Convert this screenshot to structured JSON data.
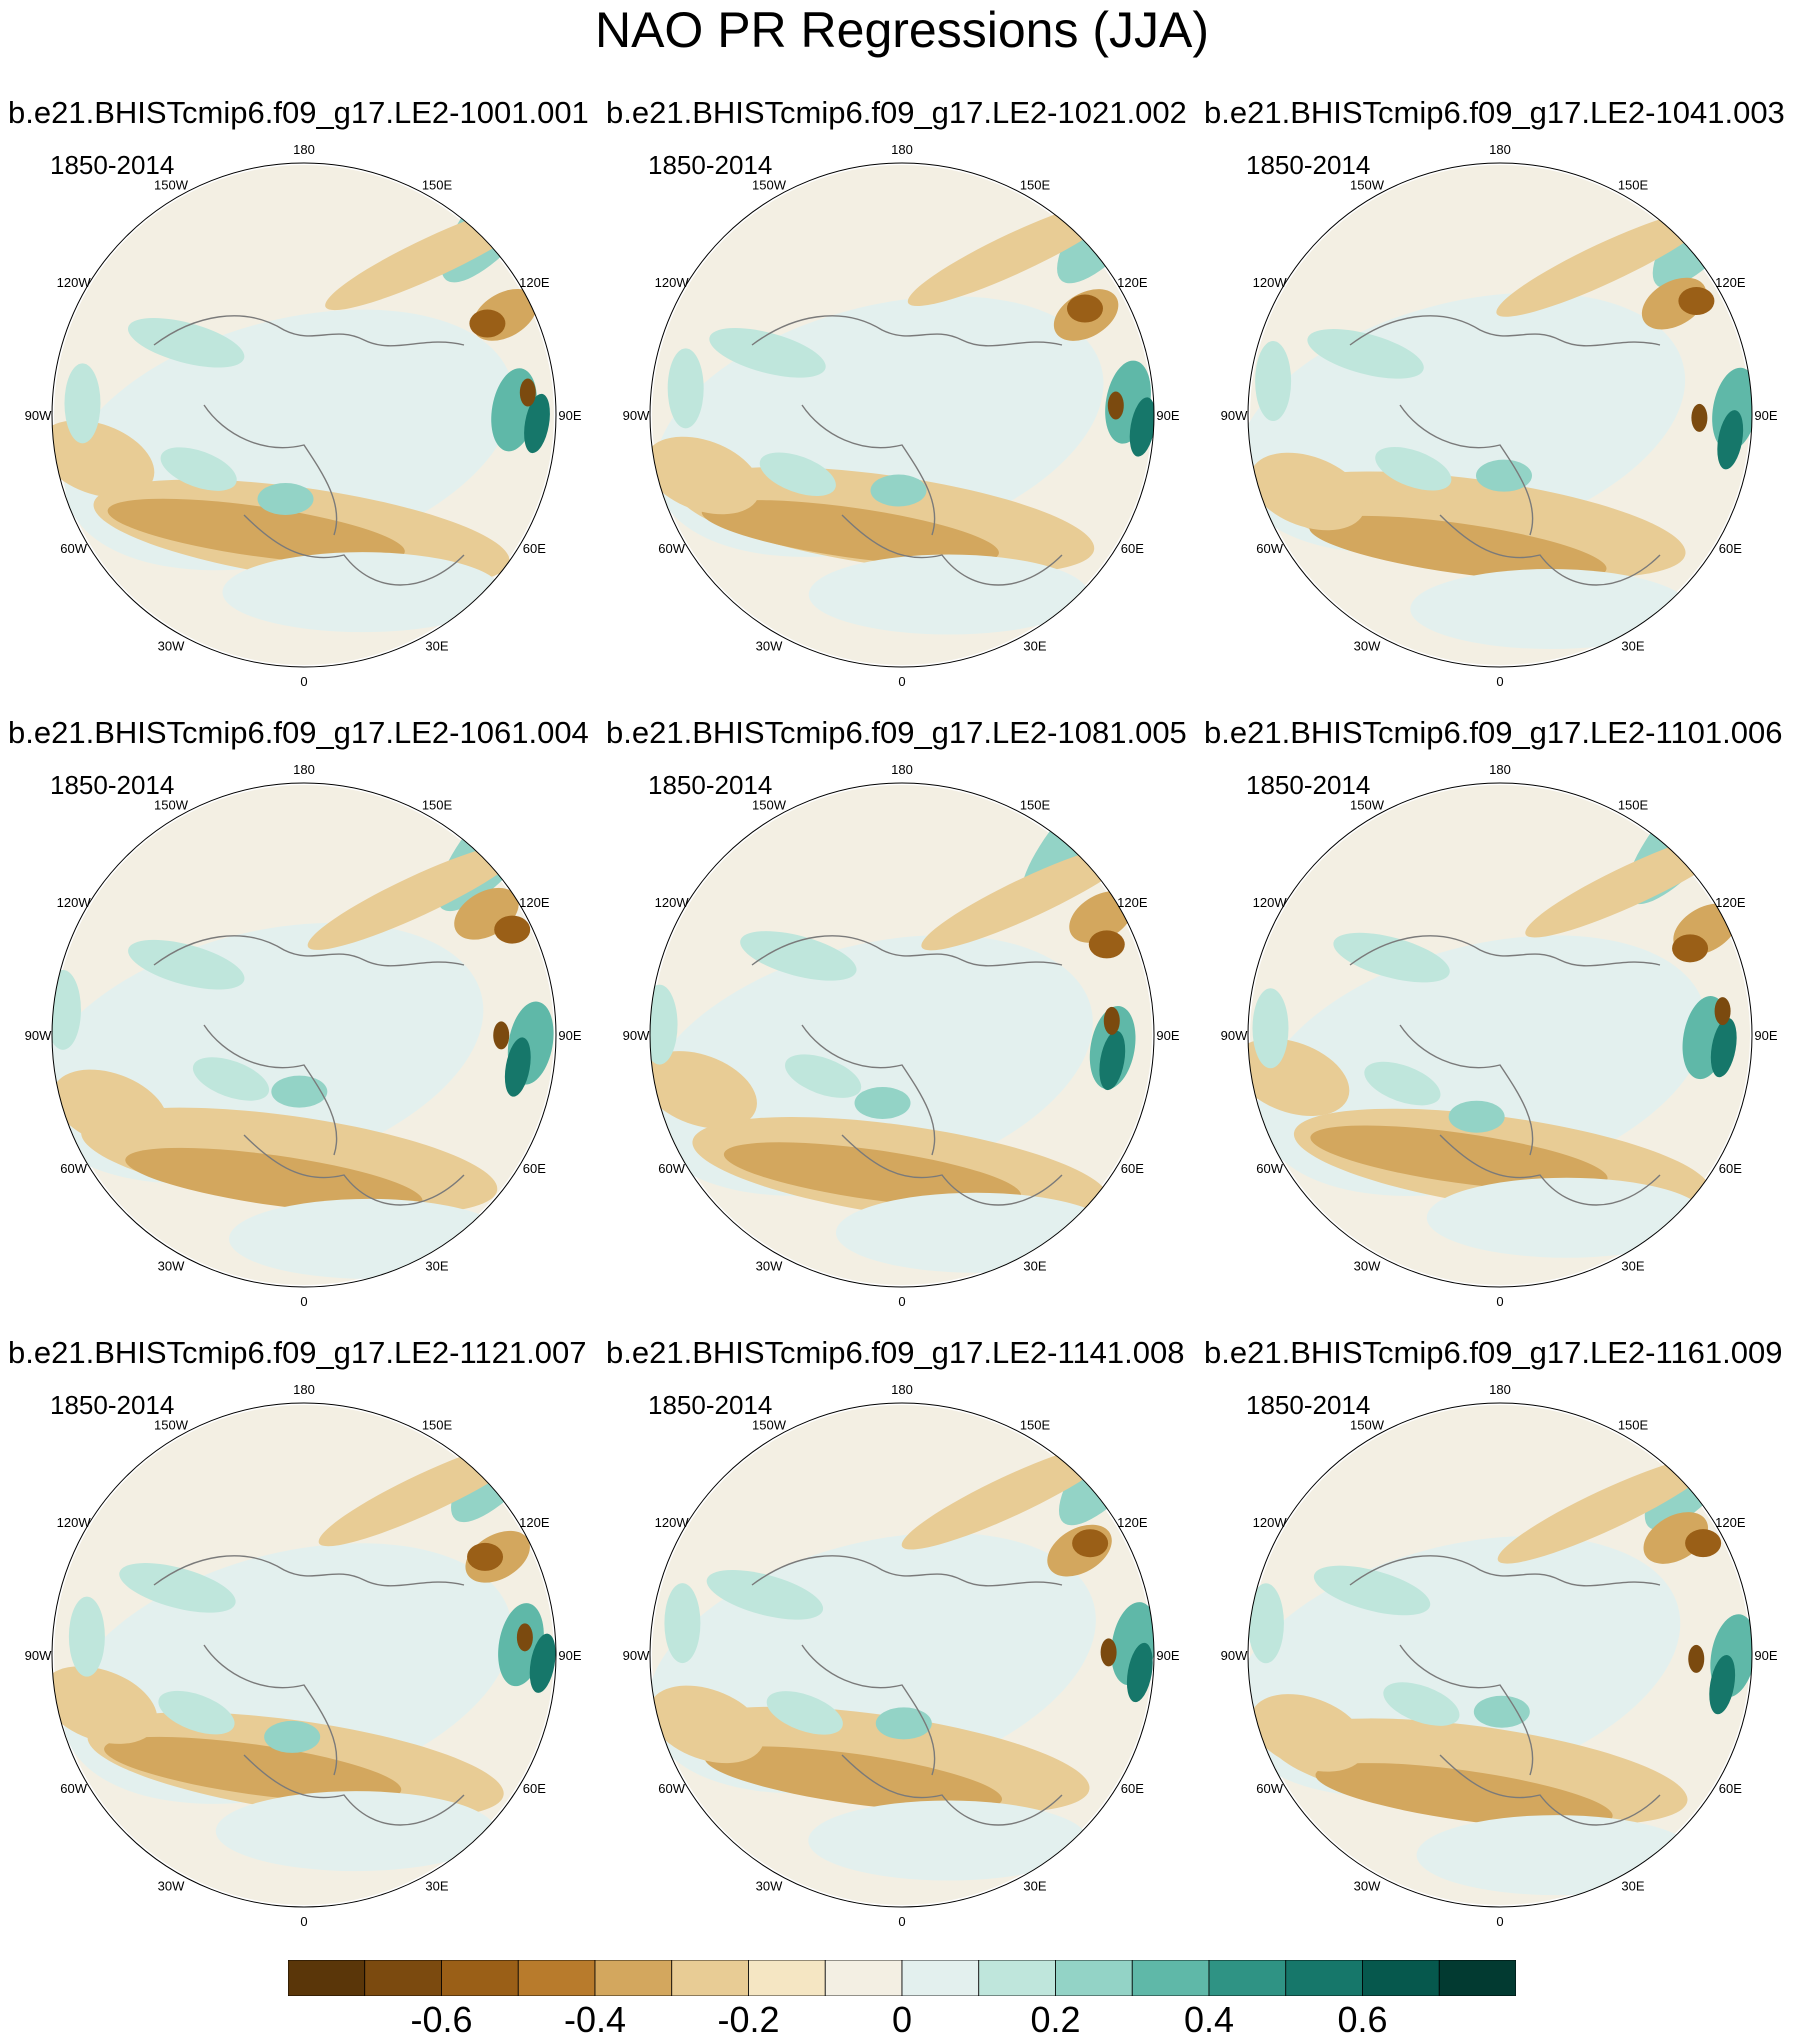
{
  "title": "NAO PR Regressions (JJA)",
  "panels": [
    {
      "title": "b.e21.BHISTcmip6.f09_g17.LE2-1001.001",
      "period": "1850-2014"
    },
    {
      "title": "b.e21.BHISTcmip6.f09_g17.LE2-1021.002",
      "period": "1850-2014"
    },
    {
      "title": "b.e21.BHISTcmip6.f09_g17.LE2-1041.003",
      "period": "1850-2014"
    },
    {
      "title": "b.e21.BHISTcmip6.f09_g17.LE2-1061.004",
      "period": "1850-2014"
    },
    {
      "title": "b.e21.BHISTcmip6.f09_g17.LE2-1081.005",
      "period": "1850-2014"
    },
    {
      "title": "b.e21.BHISTcmip6.f09_g17.LE2-1101.006",
      "period": "1850-2014"
    },
    {
      "title": "b.e21.BHISTcmip6.f09_g17.LE2-1121.007",
      "period": "1850-2014"
    },
    {
      "title": "b.e21.BHISTcmip6.f09_g17.LE2-1141.008",
      "period": "1850-2014"
    },
    {
      "title": "b.e21.BHISTcmip6.f09_g17.LE2-1161.009",
      "period": "1850-2014"
    }
  ],
  "longitude_labels": [
    "180",
    "150E",
    "120E",
    "90E",
    "60E",
    "30E",
    "0",
    "30W",
    "60W",
    "90W",
    "120W",
    "150W"
  ],
  "colorbar": {
    "colors": [
      "#5a3609",
      "#7b4a0f",
      "#9a5f17",
      "#b87b2c",
      "#d3a75e",
      "#e8cc95",
      "#f5e6c3",
      "#f3efe3",
      "#e3f0ee",
      "#bfe6dc",
      "#93d3c6",
      "#5fb8a8",
      "#2f9384",
      "#16776a",
      "#06584d",
      "#023a31"
    ],
    "tick_labels": [
      "-0.6",
      "-0.4",
      "-0.2",
      "0",
      "0.2",
      "0.4",
      "0.6"
    ]
  }
}
